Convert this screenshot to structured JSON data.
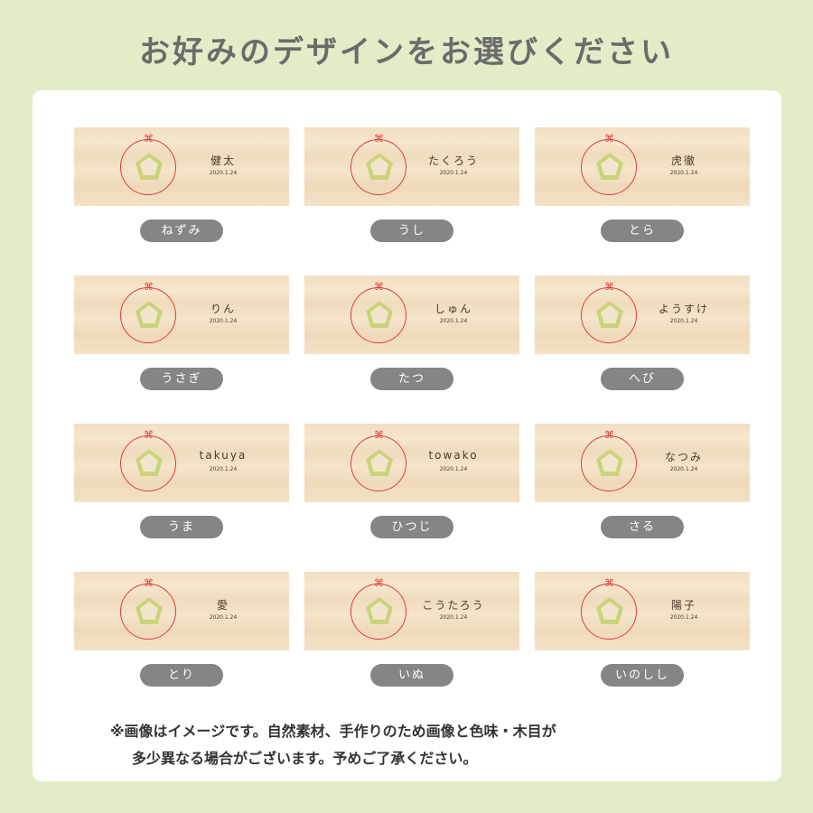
{
  "title": "お好みのデザインをお選びください",
  "date": "2020.1.24",
  "designs": [
    {
      "name": "健太",
      "label": "ねずみ"
    },
    {
      "name": "たくろう",
      "label": "うし"
    },
    {
      "name": "虎徹",
      "label": "とら"
    },
    {
      "name": "りん",
      "label": "うさぎ"
    },
    {
      "name": "しゅん",
      "label": "たつ"
    },
    {
      "name": "ようすけ",
      "label": "へび"
    },
    {
      "name": "takuya",
      "label": "うま"
    },
    {
      "name": "towako",
      "label": "ひつじ"
    },
    {
      "name": "なつみ",
      "label": "さる"
    },
    {
      "name": "愛",
      "label": "とり"
    },
    {
      "name": "こうたろう",
      "label": "いぬ"
    },
    {
      "name": "陽子",
      "label": "いのしし"
    }
  ],
  "note": [
    "※画像はイメージです。自然素材、手作りのため画像と色味・木目が",
    "多少異なる場合がございます。予めご了承ください。"
  ]
}
